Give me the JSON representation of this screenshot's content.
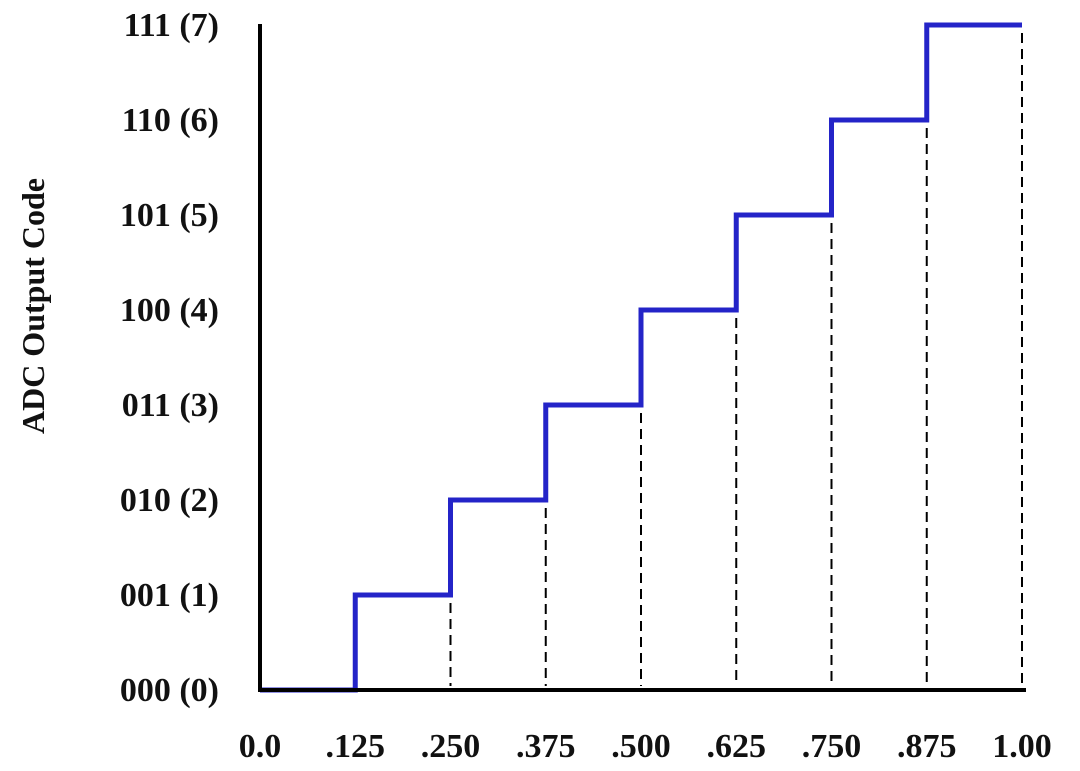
{
  "chart_data": {
    "type": "line",
    "title": "",
    "xlabel": "",
    "ylabel": "ADC Output Code",
    "x_tick_labels": [
      "0.0",
      ".125",
      ".250",
      ".375",
      ".500",
      ".625",
      ".750",
      ".875",
      "1.00"
    ],
    "y_tick_labels": [
      "000 (0)",
      "001 (1)",
      "010 (2)",
      "011 (3)",
      "100 (4)",
      "101 (5)",
      "110 (6)",
      "111 (7)"
    ],
    "xlim": [
      0,
      1.0
    ],
    "ylim": [
      0,
      7
    ],
    "series": [
      {
        "color": "#2424c8",
        "step": "post",
        "x": [
          0.0,
          0.125,
          0.25,
          0.375,
          0.5,
          0.625,
          0.75,
          0.875,
          1.0
        ],
        "y": [
          0,
          1,
          2,
          3,
          4,
          5,
          6,
          7,
          7
        ]
      }
    ],
    "reference_lines": {
      "style": "dashed",
      "color": "#000000",
      "x": [
        0.25,
        0.375,
        0.5,
        0.625,
        0.75,
        0.875,
        1.0
      ]
    },
    "grid": false,
    "legend": "none"
  }
}
